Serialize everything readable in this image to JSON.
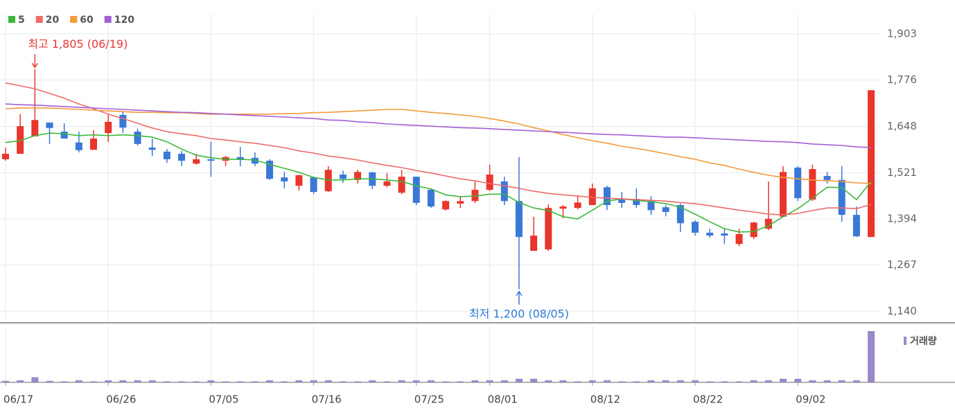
{
  "chart_data": {
    "type": "candlestick",
    "categories": [
      "06/17",
      null,
      null,
      null,
      null,
      null,
      null,
      "06/26",
      null,
      null,
      null,
      null,
      null,
      null,
      "07/05",
      null,
      null,
      null,
      null,
      null,
      null,
      "07/16",
      null,
      null,
      null,
      null,
      null,
      null,
      "07/25",
      null,
      null,
      null,
      null,
      "08/01",
      null,
      null,
      null,
      null,
      null,
      null,
      "08/12",
      null,
      null,
      null,
      null,
      null,
      null,
      "08/22",
      null,
      null,
      null,
      null,
      null,
      null,
      "09/02",
      null,
      null,
      null,
      null,
      null
    ],
    "ohlc": {
      "open": [
        1558,
        1573,
        1621,
        1659,
        1634,
        1604,
        1584,
        1630,
        1680,
        1634,
        1590,
        1579,
        1573,
        1546,
        1558,
        1554,
        1564,
        1562,
        1554,
        1508,
        1485,
        1508,
        1470,
        1516,
        1501,
        1522,
        1485,
        1466,
        1510,
        1474,
        1420,
        1436,
        1443,
        1474,
        1497,
        1443,
        1306,
        1310,
        1422,
        1424,
        1432,
        1481,
        1447,
        1449,
        1443,
        1426,
        1432,
        1386,
        1356,
        1354,
        1325,
        1344,
        1367,
        1400,
        1535,
        1447,
        1512,
        1501,
        1405,
        1344
      ],
      "high": [
        1590,
        1682,
        1805,
        1659,
        1657,
        1634,
        1638,
        1682,
        1691,
        1642,
        1615,
        1586,
        1581,
        1573,
        1606,
        1567,
        1592,
        1577,
        1558,
        1523,
        1516,
        1510,
        1539,
        1527,
        1529,
        1523,
        1520,
        1529,
        1510,
        1478,
        1445,
        1457,
        1497,
        1543,
        1510,
        1564,
        1400,
        1434,
        1432,
        1459,
        1491,
        1485,
        1468,
        1478,
        1457,
        1432,
        1436,
        1390,
        1367,
        1367,
        1367,
        1386,
        1497,
        1539,
        1539,
        1543,
        1523,
        1539,
        1428,
        1748
      ],
      "low": [
        1554,
        1573,
        1621,
        1600,
        1615,
        1577,
        1584,
        1606,
        1630,
        1596,
        1567,
        1548,
        1539,
        1543,
        1510,
        1539,
        1539,
        1539,
        1501,
        1478,
        1472,
        1462,
        1468,
        1493,
        1491,
        1476,
        1481,
        1462,
        1432,
        1424,
        1417,
        1424,
        1438,
        1470,
        1432,
        1200,
        1306,
        1306,
        1396,
        1420,
        1432,
        1418,
        1424,
        1424,
        1405,
        1401,
        1358,
        1348,
        1342,
        1325,
        1319,
        1338,
        1363,
        1400,
        1443,
        1443,
        1491,
        1386,
        1344,
        1344
      ],
      "close": [
        1573,
        1649,
        1666,
        1644,
        1615,
        1583,
        1615,
        1661,
        1645,
        1600,
        1584,
        1558,
        1554,
        1558,
        1554,
        1564,
        1556,
        1546,
        1504,
        1497,
        1514,
        1468,
        1529,
        1504,
        1523,
        1485,
        1497,
        1510,
        1438,
        1428,
        1443,
        1443,
        1474,
        1516,
        1443,
        1344,
        1348,
        1424,
        1428,
        1439,
        1478,
        1432,
        1438,
        1432,
        1418,
        1413,
        1382,
        1356,
        1348,
        1348,
        1352,
        1384,
        1394,
        1523,
        1451,
        1531,
        1501,
        1405,
        1346,
        1748
      ]
    },
    "up_color": "#e8362c",
    "down_color": "#3a78d8",
    "series": [
      {
        "name": "5",
        "color": "#3cb83c",
        "values": [
          1604,
          1609,
          1623,
          1630,
          1628,
          1623,
          1625,
          1623,
          1625,
          1623,
          1619,
          1606,
          1586,
          1569,
          1562,
          1558,
          1558,
          1556,
          1544,
          1533,
          1522,
          1508,
          1501,
          1501,
          1504,
          1504,
          1501,
          1497,
          1485,
          1476,
          1460,
          1455,
          1457,
          1462,
          1462,
          1439,
          1424,
          1417,
          1400,
          1394,
          1418,
          1443,
          1449,
          1445,
          1441,
          1436,
          1426,
          1407,
          1386,
          1367,
          1358,
          1359,
          1375,
          1400,
          1422,
          1451,
          1481,
          1480,
          1447,
          1497
        ]
      },
      {
        "name": "20",
        "color": "#ef6a6a",
        "values": [
          1768,
          1760,
          1752,
          1739,
          1726,
          1710,
          1697,
          1682,
          1670,
          1657,
          1644,
          1634,
          1628,
          1623,
          1615,
          1611,
          1606,
          1602,
          1596,
          1590,
          1581,
          1575,
          1567,
          1562,
          1556,
          1548,
          1541,
          1535,
          1527,
          1520,
          1512,
          1504,
          1499,
          1491,
          1485,
          1478,
          1470,
          1464,
          1460,
          1457,
          1453,
          1451,
          1449,
          1447,
          1445,
          1443,
          1439,
          1436,
          1430,
          1424,
          1418,
          1413,
          1407,
          1405,
          1409,
          1417,
          1424,
          1424,
          1422,
          1434
        ]
      },
      {
        "name": "60",
        "color": "#f39a3a",
        "values": [
          1697,
          1699,
          1699,
          1699,
          1697,
          1695,
          1693,
          1691,
          1689,
          1687,
          1687,
          1686,
          1686,
          1684,
          1682,
          1682,
          1682,
          1682,
          1682,
          1684,
          1684,
          1686,
          1687,
          1689,
          1691,
          1693,
          1695,
          1695,
          1691,
          1687,
          1684,
          1680,
          1676,
          1670,
          1663,
          1655,
          1645,
          1636,
          1626,
          1617,
          1609,
          1602,
          1594,
          1588,
          1581,
          1573,
          1565,
          1558,
          1548,
          1541,
          1531,
          1522,
          1514,
          1508,
          1504,
          1501,
          1499,
          1497,
          1493,
          1491
        ]
      },
      {
        "name": "120",
        "color": "#a35fd6",
        "values": [
          1710,
          1708,
          1707,
          1705,
          1703,
          1701,
          1699,
          1697,
          1695,
          1693,
          1691,
          1689,
          1687,
          1686,
          1684,
          1682,
          1680,
          1678,
          1676,
          1674,
          1672,
          1670,
          1666,
          1665,
          1661,
          1659,
          1655,
          1653,
          1651,
          1649,
          1647,
          1645,
          1644,
          1642,
          1640,
          1638,
          1636,
          1634,
          1632,
          1630,
          1628,
          1626,
          1625,
          1623,
          1621,
          1619,
          1619,
          1617,
          1615,
          1613,
          1611,
          1609,
          1607,
          1606,
          1604,
          1600,
          1598,
          1596,
          1592,
          1590
        ]
      }
    ],
    "volume": {
      "name": "거래량",
      "color": "#9a88c8",
      "values": [
        3,
        4,
        10,
        3,
        2,
        4,
        2,
        4,
        4,
        4,
        4,
        2,
        2,
        2,
        4,
        2,
        2,
        2,
        4,
        2,
        4,
        4,
        4,
        2,
        2,
        4,
        2,
        4,
        4,
        4,
        2,
        2,
        4,
        4,
        4,
        7,
        7,
        4,
        4,
        2,
        4,
        4,
        2,
        2,
        4,
        4,
        4,
        4,
        2,
        2,
        2,
        4,
        4,
        7,
        7,
        4,
        4,
        4,
        4,
        100
      ]
    },
    "volume_ylim": [
      0,
      100
    ],
    "ylim": [
      1110,
      1958
    ],
    "yticks": [
      {
        "value": 1140,
        "label": "1,140"
      },
      {
        "value": 1267,
        "label": "1,267"
      },
      {
        "value": 1394,
        "label": "1,394"
      },
      {
        "value": 1521,
        "label": "1,521"
      },
      {
        "value": 1648,
        "label": "1,648"
      },
      {
        "value": 1776,
        "label": "1,776"
      },
      {
        "value": 1903,
        "label": "1,903"
      }
    ],
    "grid": true,
    "annotations": [
      {
        "text": "최고 1,805 (06/19)",
        "color": "#e53935"
      },
      {
        "text": "최저 1,200 (08/05)",
        "color": "#2f7ad9"
      }
    ]
  }
}
